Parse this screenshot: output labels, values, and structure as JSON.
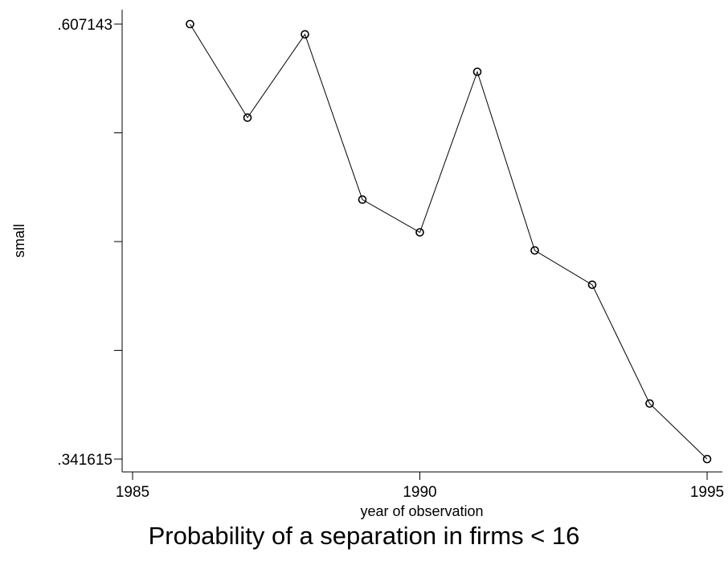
{
  "chart_data": {
    "type": "line",
    "title": "Probability of a separation in firms < 16",
    "xlabel": "year of observation",
    "ylabel": "small",
    "x": [
      1986,
      1987,
      1988,
      1989,
      1990,
      1991,
      1992,
      1993,
      1994,
      1995
    ],
    "series": [
      {
        "values": [
          0.607143,
          0.55,
          0.600849,
          0.5,
          0.48,
          0.578,
          0.469,
          0.448,
          0.3755,
          0.341615
        ]
      }
    ],
    "xlim": [
      1985,
      1995.5
    ],
    "ylim": [
      0.341615,
      0.607143
    ],
    "x_ticks": [
      1985,
      1990,
      1995
    ],
    "x_tick_labels": [
      "1985",
      "1990",
      "1995"
    ],
    "y_ticks": [
      0.341615,
      0.407997,
      0.474379,
      0.540761,
      0.607143
    ],
    "y_tick_labels": [
      ".341615",
      "",
      "",
      "",
      ".607143"
    ],
    "markers": "hollow-circle",
    "grid": false,
    "legend": "none",
    "line_color": "#000000"
  }
}
